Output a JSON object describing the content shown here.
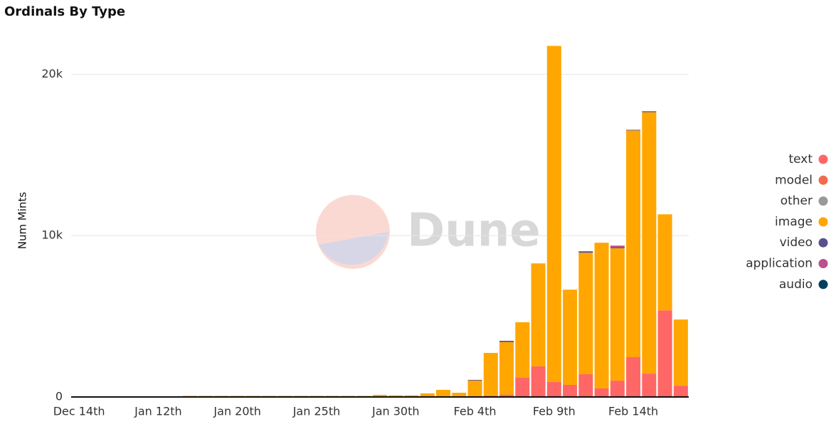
{
  "chart_data": {
    "type": "stacked_bar",
    "title": "Ordinals By Type",
    "y_label": "Num Mints",
    "watermark": "Dune",
    "categories": [
      "Dec 14th",
      null,
      null,
      null,
      null,
      "Jan 12th",
      null,
      null,
      null,
      null,
      "Jan 20th",
      null,
      null,
      null,
      null,
      "Jan 25th",
      null,
      null,
      null,
      null,
      "Jan 30th",
      null,
      null,
      null,
      null,
      "Feb 4th",
      null,
      null,
      null,
      null,
      "Feb 9th",
      null,
      null,
      null,
      null,
      "Feb 14th",
      null,
      null,
      null
    ],
    "series": [
      {
        "name": "text",
        "color": "#ff6666",
        "values": [
          10,
          10,
          10,
          10,
          10,
          10,
          10,
          10,
          10,
          10,
          10,
          10,
          10,
          10,
          10,
          10,
          10,
          10,
          10,
          10,
          10,
          10,
          20,
          20,
          30,
          60,
          100,
          150,
          1190,
          1900,
          930,
          750,
          1410,
          530,
          1010,
          2470,
          1450,
          5370,
          700
        ]
      },
      {
        "name": "model",
        "color": "#f46a4e",
        "values": [
          0,
          0,
          0,
          0,
          0,
          0,
          0,
          0,
          0,
          0,
          0,
          0,
          0,
          0,
          0,
          0,
          0,
          0,
          0,
          0,
          0,
          0,
          0,
          0,
          0,
          0,
          0,
          0,
          0,
          0,
          0,
          0,
          0,
          0,
          0,
          0,
          0,
          0,
          0
        ]
      },
      {
        "name": "other",
        "color": "#999999",
        "values": [
          0,
          0,
          0,
          0,
          0,
          0,
          0,
          0,
          0,
          0,
          0,
          0,
          0,
          0,
          0,
          0,
          0,
          0,
          0,
          0,
          0,
          0,
          0,
          0,
          0,
          0,
          0,
          0,
          0,
          0,
          0,
          0,
          0,
          0,
          0,
          0,
          0,
          0,
          0
        ]
      },
      {
        "name": "image",
        "color": "#ffa600",
        "values": [
          20,
          20,
          20,
          20,
          20,
          20,
          20,
          60,
          60,
          60,
          60,
          60,
          60,
          60,
          60,
          60,
          60,
          60,
          60,
          120,
          90,
          90,
          200,
          420,
          230,
          960,
          2630,
          3250,
          3440,
          6380,
          20830,
          5900,
          7530,
          9030,
          8210,
          14050,
          16200,
          5950,
          4100
        ]
      },
      {
        "name": "video",
        "color": "#58508d",
        "values": [
          0,
          0,
          0,
          0,
          0,
          0,
          0,
          0,
          0,
          0,
          0,
          0,
          0,
          0,
          0,
          0,
          0,
          0,
          0,
          0,
          0,
          0,
          0,
          0,
          0,
          40,
          0,
          80,
          0,
          0,
          0,
          0,
          90,
          0,
          60,
          40,
          60,
          0,
          0
        ]
      },
      {
        "name": "application",
        "color": "#bc5090",
        "values": [
          0,
          0,
          0,
          0,
          0,
          0,
          0,
          0,
          0,
          0,
          0,
          0,
          0,
          0,
          0,
          0,
          0,
          0,
          0,
          0,
          0,
          0,
          0,
          0,
          0,
          0,
          0,
          0,
          0,
          0,
          0,
          0,
          0,
          0,
          100,
          0,
          0,
          0,
          0
        ]
      },
      {
        "name": "audio",
        "color": "#003f5c",
        "values": [
          0,
          0,
          0,
          0,
          0,
          0,
          0,
          0,
          0,
          0,
          0,
          0,
          0,
          0,
          0,
          0,
          0,
          0,
          0,
          0,
          0,
          0,
          0,
          0,
          0,
          0,
          0,
          0,
          0,
          0,
          0,
          0,
          0,
          0,
          0,
          0,
          0,
          0,
          0
        ]
      }
    ],
    "ylim": [
      0,
      22400
    ],
    "yticks": [
      0,
      {
        "value": 10000,
        "label": "10k"
      },
      {
        "value": 20000,
        "label": "20k"
      }
    ],
    "grid": true,
    "legend": "right"
  }
}
